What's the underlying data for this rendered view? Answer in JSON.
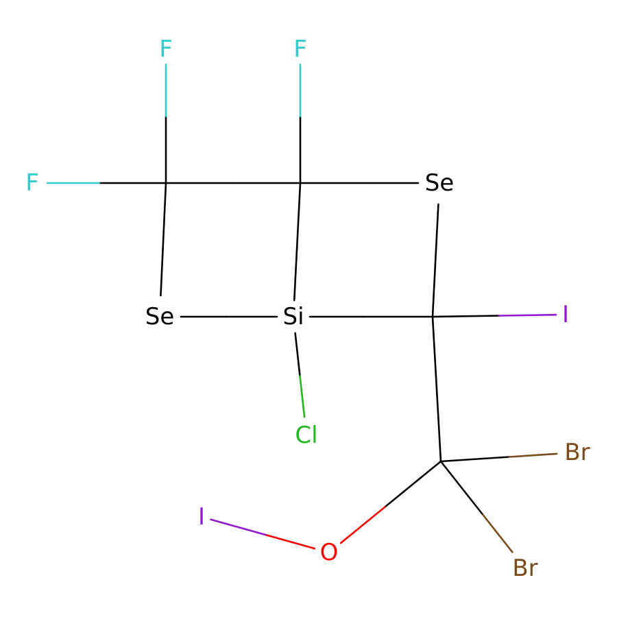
{
  "colors": {
    "carbon": "#000000",
    "fluorine": "#33CCCC",
    "selenium": "#000000",
    "silicon": "#000000",
    "chlorine": "#1FB81F",
    "iodine": "#9418D4",
    "bromine": "#7A4A1A",
    "oxygen": "#FF0000",
    "background": "#FFFFFF"
  },
  "atoms": {
    "f_top_left": {
      "symbol": "F",
      "element": "fluorine"
    },
    "f_top_right": {
      "symbol": "F",
      "element": "fluorine"
    },
    "f_left": {
      "symbol": "F",
      "element": "fluorine"
    },
    "se_right": {
      "symbol": "Se",
      "element": "selenium"
    },
    "se_left": {
      "symbol": "Se",
      "element": "selenium"
    },
    "si": {
      "symbol": "Si",
      "element": "silicon"
    },
    "i_right": {
      "symbol": "I",
      "element": "iodine"
    },
    "cl": {
      "symbol": "Cl",
      "element": "chlorine"
    },
    "br_upper": {
      "symbol": "Br",
      "element": "bromine"
    },
    "i_left": {
      "symbol": "I",
      "element": "iodine"
    },
    "o": {
      "symbol": "O",
      "element": "oxygen"
    },
    "br_lower": {
      "symbol": "Br",
      "element": "bromine"
    }
  },
  "bonds": [
    {
      "a": "c1",
      "b": "f_top_left"
    },
    {
      "a": "c1",
      "b": "f_left"
    },
    {
      "a": "c1",
      "b": "c2"
    },
    {
      "a": "c1",
      "b": "se_left"
    },
    {
      "a": "c2",
      "b": "f_top_right"
    },
    {
      "a": "c2",
      "b": "se_right"
    },
    {
      "a": "c2",
      "b": "si"
    },
    {
      "a": "se_left",
      "b": "si"
    },
    {
      "a": "si",
      "b": "c3"
    },
    {
      "a": "si",
      "b": "cl"
    },
    {
      "a": "se_right",
      "b": "c3"
    },
    {
      "a": "c3",
      "b": "i_right"
    },
    {
      "a": "c3",
      "b": "c4"
    },
    {
      "a": "c4",
      "b": "br_upper"
    },
    {
      "a": "c4",
      "b": "br_lower"
    },
    {
      "a": "c4",
      "b": "o"
    },
    {
      "a": "o",
      "b": "i_left"
    }
  ]
}
